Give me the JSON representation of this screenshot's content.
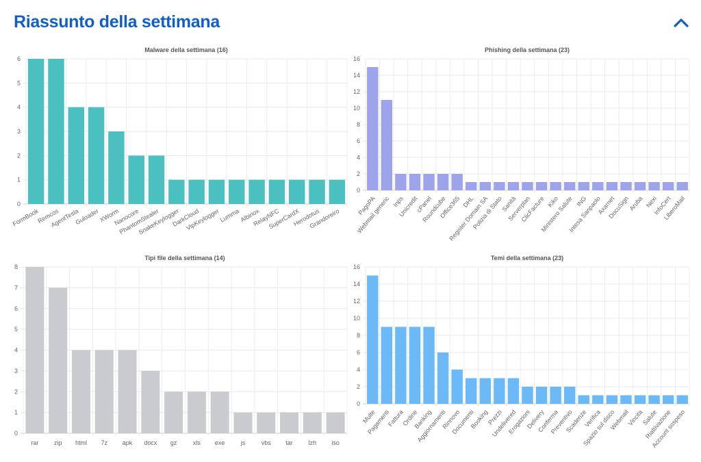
{
  "header": {
    "title": "Riassunto della settimana",
    "collapse_icon": "chevron-up-icon",
    "accent": "#0f5fc6"
  },
  "chart_data": [
    {
      "type": "bar",
      "title": "Malware della settimana (16)",
      "color": "#4bc0c0",
      "ylim": [
        0,
        6
      ],
      "ystep": 1,
      "grid": true,
      "label_rotation": "rotated",
      "categories": [
        "FormBook",
        "Remcos",
        "AgentTesla",
        "Guloader",
        "XWorm",
        "Nanocore",
        "PhantomStealer",
        "SnakeKeylogger",
        "DarkCloud",
        "VipKeylogger",
        "Lumma",
        "Albiriox",
        "RelayNFC",
        "SuperCardX",
        "Herodotus",
        "Grandoreiro"
      ],
      "values": [
        6,
        6,
        4,
        4,
        3,
        2,
        2,
        1,
        1,
        1,
        1,
        1,
        1,
        1,
        1,
        1
      ]
    },
    {
      "type": "bar",
      "title": "Phishing della settimana (23)",
      "color": "#9ea4ec",
      "ylim": [
        0,
        16
      ],
      "ystep": 2,
      "grid": true,
      "label_rotation": "rotated",
      "categories": [
        "PagoPA",
        "Webmail generic",
        "Inps",
        "Unicredit",
        "cPanel",
        "Roundcube",
        "Office365",
        "DHL",
        "Register Domain SA",
        "Polizia di Stato",
        "Sanità",
        "Serverplan",
        "ClicFacture",
        "Kiko",
        "Ministero Salute",
        "ING",
        "Intesa Sanpaolo",
        "Axarnet",
        "DocuSign",
        "Aruba",
        "Nexi",
        "InfoCert",
        "LiberoMail"
      ],
      "values": [
        15,
        11,
        2,
        2,
        2,
        2,
        2,
        1,
        1,
        1,
        1,
        1,
        1,
        1,
        1,
        1,
        1,
        1,
        1,
        1,
        1,
        1,
        1
      ]
    },
    {
      "type": "bar",
      "title": "Tipi file della settimana (14)",
      "color": "#c9cbcf",
      "ylim": [
        0,
        8
      ],
      "ystep": 1,
      "grid": true,
      "label_rotation": "horizontal",
      "categories": [
        "rar",
        "zip",
        "html",
        "7z",
        "apk",
        "docx",
        "gz",
        "xls",
        "exe",
        "js",
        "vbs",
        "tar",
        "lzh",
        "iso"
      ],
      "values": [
        8,
        7,
        4,
        4,
        4,
        3,
        2,
        2,
        2,
        1,
        1,
        1,
        1,
        1
      ]
    },
    {
      "type": "bar",
      "title": "Temi della settimana (23)",
      "color": "#6bbaf7",
      "ylim": [
        0,
        16
      ],
      "ystep": 2,
      "grid": true,
      "label_rotation": "rotated",
      "categories": [
        "Multe",
        "Pagamenti",
        "Fattura",
        "Ordine",
        "Banking",
        "Aggiornamenti",
        "Rinnovo",
        "Documenti",
        "Booking",
        "Prezzi",
        "Undelivered",
        "Erogazioni",
        "Delivery",
        "Conferma",
        "Preventivo",
        "Scadenze",
        "Verifica",
        "Spazio sul disco",
        "Webmail",
        "Vincita",
        "Salute",
        "Riattivazione",
        "Account sospeso"
      ],
      "values": [
        15,
        9,
        9,
        9,
        9,
        6,
        4,
        3,
        3,
        3,
        3,
        2,
        2,
        2,
        2,
        1,
        1,
        1,
        1,
        1,
        1,
        1,
        1
      ]
    }
  ]
}
